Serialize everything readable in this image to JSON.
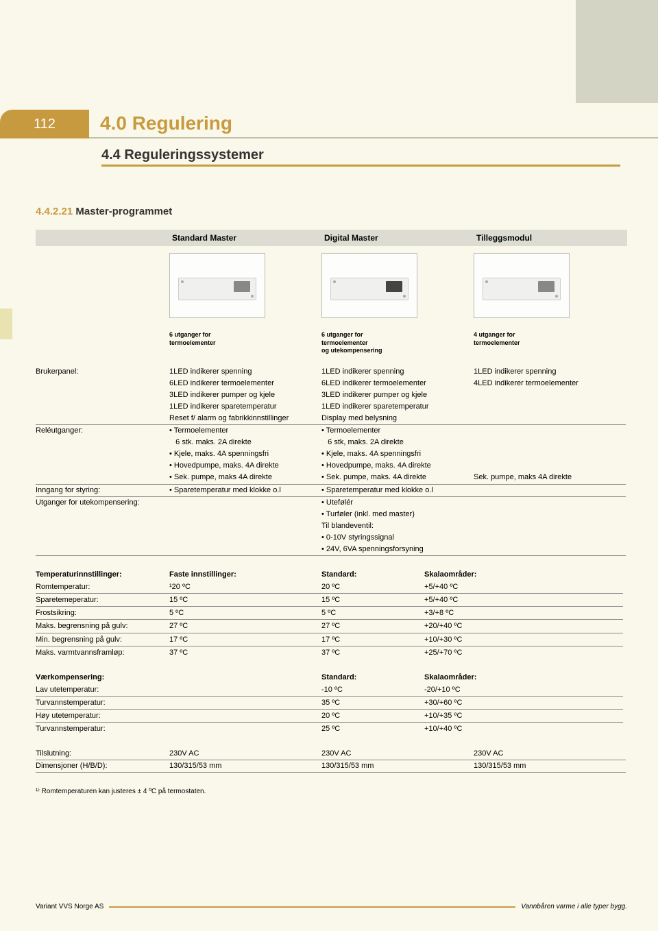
{
  "page_number": "112",
  "h1": "4.0 Regulering",
  "h2": "4.4 Reguleringssystemer",
  "h3_num": "4.4.2.21",
  "h3_text": " Master-programmet",
  "products": {
    "col1": "Standard Master",
    "col2": "Digital Master",
    "col3": "Tilleggsmodul"
  },
  "captions": {
    "col1": "6 utganger for\ntermoelementer",
    "col2": "6 utganger for\ntermoelementer\nog utekompensering",
    "col3": "4 utganger for\ntermoelementer"
  },
  "specs": [
    {
      "label": "Brukerpanel:",
      "c1": "1LED indikerer spenning",
      "c2": "1LED indikerer spenning",
      "c3": "1LED indikerer spenning"
    },
    {
      "label": "",
      "c1": "6LED indikerer termoelementer",
      "c2": "6LED indikerer termoelementer",
      "c3": "4LED indikerer termoelementer"
    },
    {
      "label": "",
      "c1": "3LED indikerer pumper og kjele",
      "c2": "3LED indikerer pumper og kjele",
      "c3": ""
    },
    {
      "label": "",
      "c1": "1LED indikerer sparetemperatur",
      "c2": "1LED indikerer sparetemperatur",
      "c3": ""
    },
    {
      "label": "",
      "c1": "Reset f/ alarm og fabrikkinnstillinger",
      "c2": "Display med belysning",
      "c3": "",
      "brd": true
    },
    {
      "label": "Reléutganger:",
      "c1": "• Termoelementer",
      "c2": "• Termoelementer",
      "c3": ""
    },
    {
      "label": "",
      "c1": "   6 stk. maks. 2A direkte",
      "c2": "   6 stk, maks. 2A direkte",
      "c3": ""
    },
    {
      "label": "",
      "c1": "• Kjele, maks. 4A spenningsfri",
      "c2": "• Kjele, maks. 4A spenningsfri",
      "c3": ""
    },
    {
      "label": "",
      "c1": "• Hovedpumpe, maks. 4A direkte",
      "c2": "• Hovedpumpe, maks. 4A direkte",
      "c3": ""
    },
    {
      "label": "",
      "c1": "• Sek. pumpe, maks 4A direkte",
      "c2": "• Sek. pumpe, maks. 4A direkte",
      "c3": "Sek. pumpe, maks 4A direkte",
      "brd": true
    },
    {
      "label": "Inngang for styring:",
      "c1": "• Sparetemperatur med klokke o.l",
      "c2": "• Sparetemperatur med klokke o.l",
      "c3": "",
      "brd": true
    },
    {
      "label": "Utganger for utekompensering:",
      "c1": "",
      "c2": "• Utefølér",
      "c3": ""
    },
    {
      "label": "",
      "c1": "",
      "c2": "• Turføler (inkl. med master)",
      "c3": ""
    },
    {
      "label": "",
      "c1": "",
      "c2": "Til blandeventil:",
      "c3": ""
    },
    {
      "label": "",
      "c1": "",
      "c2": "• 0-10V styringssignal",
      "c3": ""
    },
    {
      "label": "",
      "c1": "",
      "c2": "• 24V, 6VA spenningsforsyning",
      "c3": "",
      "brd": true
    }
  ],
  "tempHdr": {
    "c0": "Temperaturinnstillinger:",
    "c1": "Faste innstillinger:",
    "c2": "Standard:",
    "c3": "Skalaområder:"
  },
  "tempRows": [
    {
      "label": "Romtemperatur:",
      "c1": "¹20 ºC",
      "c2": "20 ºC",
      "c3": "+5/+40 ºC"
    },
    {
      "label": "Sparetemeperatur:",
      "c1": "15 ºC",
      "c2": "15 ºC",
      "c3": "+5/+40 ºC"
    },
    {
      "label": "Frostsikring:",
      "c1": "5 ºC",
      "c2": "5 ºC",
      "c3": "+3/+8 ºC"
    },
    {
      "label": "Maks. begrensning på gulv:",
      "c1": "27 ºC",
      "c2": "27 ºC",
      "c3": "+20/+40 ºC"
    },
    {
      "label": "Min. begrensning på gulv:",
      "c1": "17 ºC",
      "c2": "17 ºC",
      "c3": "+10/+30 ºC"
    },
    {
      "label": "Maks. varmtvannsframløp:",
      "c1": "37 ºC",
      "c2": "37 ºC",
      "c3": "+25/+70 ºC"
    }
  ],
  "weatherHdr": {
    "c0": "Værkompensering:",
    "c2": "Standard:",
    "c3": "Skalaområder:"
  },
  "weatherRows": [
    {
      "label": "Lav utetemperatur:",
      "c2": "-10 ºC",
      "c3": "-20/+10 ºC"
    },
    {
      "label": "Turvannstemperatur:",
      "c2": "35 ºC",
      "c3": "+30/+60 ºC"
    },
    {
      "label": "Høy utetemperatur:",
      "c2": "20 ºC",
      "c3": "+10/+35 ºC"
    },
    {
      "label": "Turvannstemperatur:",
      "c2": "25 ºC",
      "c3": "+10/+40 ºC"
    }
  ],
  "bottomRows": [
    {
      "label": "Tilslutning:",
      "c1": "230V AC",
      "c2": "230V AC",
      "c3": "230V AC"
    },
    {
      "label": "Dimensjoner (H/B/D):",
      "c1": "130/315/53 mm",
      "c2": "130/315/53 mm",
      "c3": "130/315/53 mm"
    }
  ],
  "footnote": "¹⁾ Romtemperaturen kan justeres ± 4 ºC på termostaten.",
  "footer_left": "Variant VVS Norge AS",
  "footer_right": "Vannbåren varme i alle typer bygg."
}
